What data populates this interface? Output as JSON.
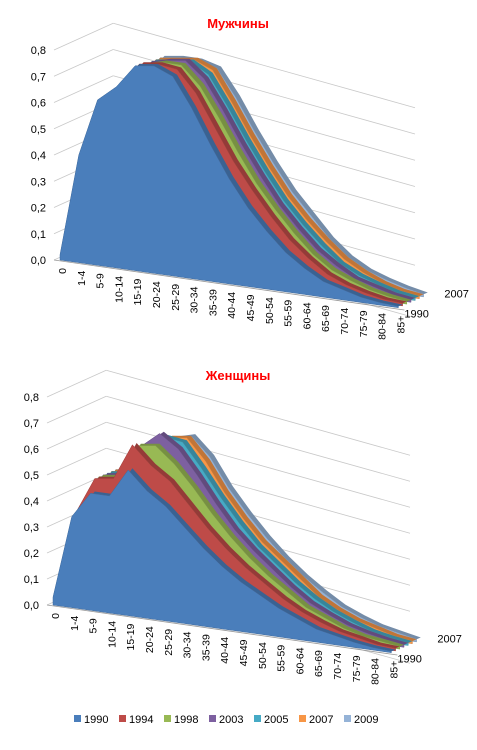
{
  "chart_data": [
    {
      "type": "area",
      "title": "Мужчины",
      "categories": [
        "0",
        "1-4",
        "5-9",
        "10-14",
        "15-19",
        "20-24",
        "25-29",
        "30-34",
        "35-39",
        "40-44",
        "45-49",
        "50-54",
        "55-59",
        "60-64",
        "65-69",
        "70-74",
        "75-79",
        "80-84",
        "85+"
      ],
      "yticks": [
        "0,0",
        "0,1",
        "0,2",
        "0,3",
        "0,4",
        "0,5",
        "0,6",
        "0,7",
        "0,8"
      ],
      "ylim": [
        0,
        0.8
      ],
      "depth_labels": [
        "2007",
        "1990"
      ],
      "series": [
        {
          "name": "1990",
          "values": [
            0.02,
            0.41,
            0.63,
            0.69,
            0.78,
            0.79,
            0.76,
            0.65,
            0.52,
            0.4,
            0.3,
            0.22,
            0.15,
            0.1,
            0.06,
            0.04,
            0.02,
            0.01,
            0.005
          ]
        },
        {
          "name": "1994",
          "values": [
            0.02,
            0.41,
            0.62,
            0.69,
            0.78,
            0.79,
            0.78,
            0.7,
            0.58,
            0.46,
            0.36,
            0.27,
            0.19,
            0.13,
            0.08,
            0.05,
            0.03,
            0.015,
            0.01
          ]
        },
        {
          "name": "1998",
          "values": [
            0.02,
            0.41,
            0.62,
            0.69,
            0.77,
            0.79,
            0.79,
            0.72,
            0.61,
            0.49,
            0.38,
            0.29,
            0.21,
            0.14,
            0.09,
            0.06,
            0.035,
            0.02,
            0.01
          ]
        },
        {
          "name": "2003",
          "values": [
            0.02,
            0.41,
            0.62,
            0.69,
            0.77,
            0.79,
            0.8,
            0.74,
            0.63,
            0.51,
            0.4,
            0.3,
            0.22,
            0.15,
            0.1,
            0.06,
            0.04,
            0.02,
            0.01
          ]
        },
        {
          "name": "2005",
          "values": [
            0.02,
            0.41,
            0.62,
            0.69,
            0.77,
            0.78,
            0.79,
            0.75,
            0.64,
            0.52,
            0.41,
            0.31,
            0.23,
            0.16,
            0.1,
            0.065,
            0.04,
            0.02,
            0.01
          ]
        },
        {
          "name": "2007",
          "values": [
            0.02,
            0.41,
            0.62,
            0.69,
            0.77,
            0.78,
            0.79,
            0.76,
            0.65,
            0.53,
            0.42,
            0.32,
            0.24,
            0.17,
            0.11,
            0.07,
            0.04,
            0.02,
            0.01
          ]
        },
        {
          "name": "2009",
          "values": [
            0.02,
            0.41,
            0.62,
            0.69,
            0.77,
            0.78,
            0.78,
            0.76,
            0.66,
            0.54,
            0.43,
            0.33,
            0.25,
            0.17,
            0.11,
            0.07,
            0.045,
            0.025,
            0.01
          ]
        }
      ]
    },
    {
      "type": "area",
      "title": "Женщины",
      "categories": [
        "0",
        "1-4",
        "5-9",
        "10-14",
        "15-19",
        "20-24",
        "25-29",
        "30-34",
        "35-39",
        "40-44",
        "45-49",
        "50-54",
        "55-59",
        "60-64",
        "65-69",
        "70-74",
        "75-79",
        "80-84",
        "85+"
      ],
      "yticks": [
        "0,0",
        "0,1",
        "0,2",
        "0,3",
        "0,4",
        "0,5",
        "0,6",
        "0,7",
        "0,8"
      ],
      "ylim": [
        0,
        0.8
      ],
      "depth_labels": [
        "2007",
        "1990"
      ],
      "series": [
        {
          "name": "1990",
          "values": [
            0.03,
            0.35,
            0.45,
            0.45,
            0.56,
            0.49,
            0.44,
            0.37,
            0.3,
            0.24,
            0.19,
            0.15,
            0.11,
            0.08,
            0.05,
            0.035,
            0.02,
            0.01,
            0.005
          ]
        },
        {
          "name": "1994",
          "values": [
            0.03,
            0.36,
            0.5,
            0.51,
            0.65,
            0.58,
            0.53,
            0.45,
            0.37,
            0.3,
            0.24,
            0.19,
            0.14,
            0.1,
            0.07,
            0.045,
            0.03,
            0.015,
            0.01
          ]
        },
        {
          "name": "1998",
          "values": [
            0.03,
            0.36,
            0.5,
            0.51,
            0.64,
            0.65,
            0.59,
            0.51,
            0.42,
            0.34,
            0.27,
            0.21,
            0.16,
            0.11,
            0.08,
            0.05,
            0.03,
            0.02,
            0.01
          ]
        },
        {
          "name": "2003",
          "values": [
            0.03,
            0.36,
            0.5,
            0.51,
            0.63,
            0.69,
            0.64,
            0.55,
            0.45,
            0.36,
            0.29,
            0.23,
            0.17,
            0.12,
            0.085,
            0.055,
            0.035,
            0.02,
            0.01
          ]
        },
        {
          "name": "2005",
          "values": [
            0.03,
            0.36,
            0.5,
            0.51,
            0.62,
            0.67,
            0.66,
            0.57,
            0.47,
            0.38,
            0.3,
            0.24,
            0.18,
            0.13,
            0.09,
            0.06,
            0.035,
            0.02,
            0.01
          ]
        },
        {
          "name": "2007",
          "values": [
            0.03,
            0.36,
            0.5,
            0.51,
            0.61,
            0.66,
            0.67,
            0.59,
            0.48,
            0.39,
            0.31,
            0.25,
            0.19,
            0.13,
            0.09,
            0.06,
            0.04,
            0.02,
            0.01
          ]
        },
        {
          "name": "2009",
          "values": [
            0.03,
            0.36,
            0.5,
            0.51,
            0.6,
            0.65,
            0.67,
            0.6,
            0.49,
            0.4,
            0.32,
            0.25,
            0.19,
            0.14,
            0.095,
            0.065,
            0.04,
            0.025,
            0.01
          ]
        }
      ]
    }
  ],
  "legend": {
    "placement": "bottom",
    "items": [
      {
        "label": "1990",
        "color": "#4A7EBB"
      },
      {
        "label": "1994",
        "color": "#BE4B48"
      },
      {
        "label": "1998",
        "color": "#98B954"
      },
      {
        "label": "2003",
        "color": "#7D60A0"
      },
      {
        "label": "2005",
        "color": "#46AAC5"
      },
      {
        "label": "2007",
        "color": "#F79646"
      },
      {
        "label": "2009",
        "color": "#95B3D7"
      }
    ]
  },
  "title_color": "#FF0000"
}
